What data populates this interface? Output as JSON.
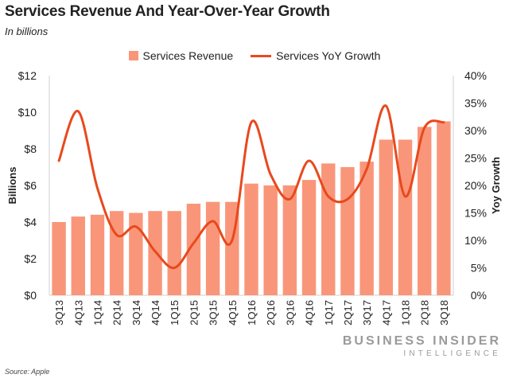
{
  "header": {
    "title": "Services Revenue And Year-Over-Year Growth",
    "subtitle": "In billions"
  },
  "legend": {
    "bar_label": "Services Revenue",
    "line_label": "Services YoY Growth"
  },
  "footer": {
    "source": "Source: Apple",
    "brand_top": "BUSINESS INSIDER",
    "brand_bottom": "INTELLIGENCE"
  },
  "colors": {
    "bar": "#F9967A",
    "line": "#E8491D",
    "axis": "#d0d0d0"
  },
  "chart_data": {
    "type": "bar",
    "categories": [
      "3Q13",
      "4Q13",
      "1Q14",
      "2Q14",
      "3Q14",
      "4Q14",
      "1Q15",
      "2Q15",
      "3Q15",
      "4Q15",
      "1Q16",
      "2Q16",
      "3Q16",
      "4Q16",
      "1Q17",
      "2Q17",
      "3Q17",
      "4Q17",
      "1Q18",
      "2Q18",
      "3Q18"
    ],
    "series": [
      {
        "name": "Services Revenue",
        "type": "bar",
        "axis": "left",
        "values": [
          4.0,
          4.3,
          4.4,
          4.6,
          4.5,
          4.6,
          4.6,
          5.0,
          5.1,
          5.1,
          6.1,
          6.0,
          6.0,
          6.3,
          7.2,
          7.0,
          7.3,
          8.5,
          8.5,
          9.2,
          9.5
        ]
      },
      {
        "name": "Services YoY Growth",
        "type": "line",
        "axis": "right",
        "values": [
          24.5,
          33.5,
          19.5,
          11.0,
          12.5,
          8.0,
          5.0,
          9.5,
          13.5,
          10.0,
          31.5,
          22.0,
          17.5,
          24.5,
          18.0,
          17.5,
          23.0,
          34.5,
          18.0,
          30.5,
          31.5
        ]
      }
    ],
    "ylabel": "Billions",
    "y2label": "Yoy Growth",
    "ylim": [
      0,
      12
    ],
    "y2lim": [
      0,
      40
    ],
    "yticks": [
      "$0",
      "$2",
      "$4",
      "$6",
      "$8",
      "$10",
      "$12"
    ],
    "y2ticks": [
      "0%",
      "5%",
      "10%",
      "15%",
      "20%",
      "25%",
      "30%",
      "35%",
      "40%"
    ],
    "legend_position": "top-center",
    "grid": false
  }
}
